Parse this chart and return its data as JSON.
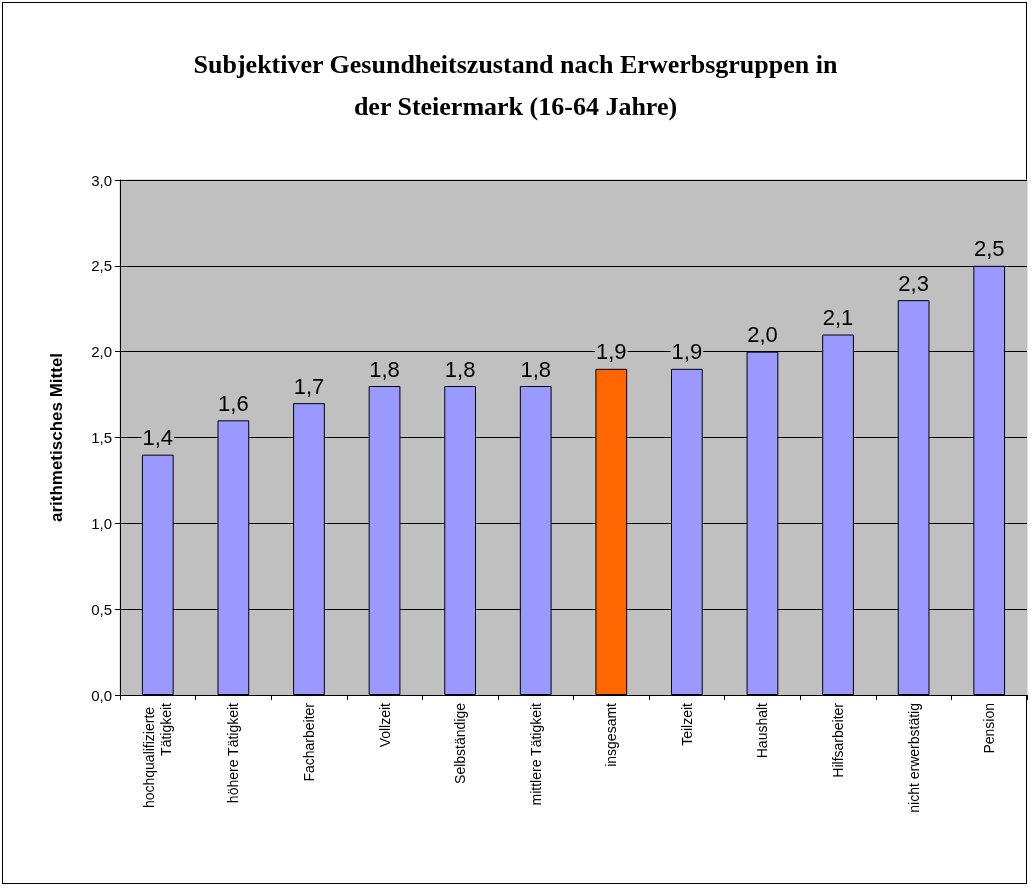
{
  "chart_data": {
    "type": "bar",
    "title": "Subjektiver Gesundheitszustand nach Erwerbsgruppen in\nder Steiermark (16-64 Jahre)",
    "ylabel": "arithmetisches Mittel",
    "categories": [
      "hochqualifizierte Tätigkeit",
      "höhere Tätigkeit",
      "Facharbeiter",
      "Vollzeit",
      "Selbständige",
      "mittlere Tätigkeit",
      "insgesamt",
      "Teilzeit",
      "Haushalt",
      "Hilfsarbeiter",
      "nicht erwerbstätig",
      "Pension"
    ],
    "values": [
      1.4,
      1.6,
      1.7,
      1.8,
      1.8,
      1.8,
      1.9,
      1.9,
      2.0,
      2.1,
      2.3,
      2.5
    ],
    "colors": [
      "#9999ff",
      "#9999ff",
      "#9999ff",
      "#9999ff",
      "#9999ff",
      "#9999ff",
      "#ff6600",
      "#9999ff",
      "#9999ff",
      "#9999ff",
      "#9999ff",
      "#9999ff"
    ],
    "value_labels": [
      "1,4",
      "1,6",
      "1,7",
      "1,8",
      "1,8",
      "1,8",
      "1,9",
      "1,9",
      "2,0",
      "2,1",
      "2,3",
      "2,5"
    ],
    "ylim": [
      0,
      3
    ],
    "yticks": [
      {
        "value": 0,
        "label": "0,0"
      },
      {
        "value": 0.5,
        "label": "0,5"
      },
      {
        "value": 1,
        "label": "1,0"
      },
      {
        "value": 1.5,
        "label": "1,5"
      },
      {
        "value": 2,
        "label": "2,0"
      },
      {
        "value": 2.5,
        "label": "2,5"
      },
      {
        "value": 3,
        "label": "3,0"
      }
    ],
    "grid": "y"
  }
}
